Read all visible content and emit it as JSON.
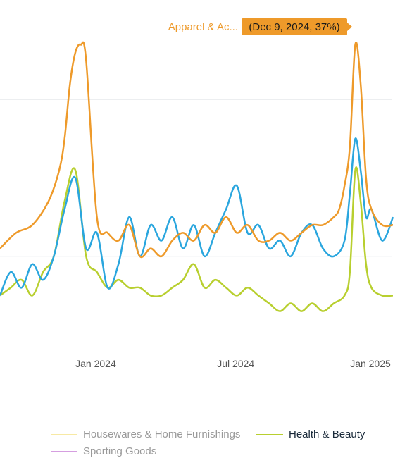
{
  "colors": {
    "apparel": "#ee9a2a",
    "electronics": "#2aa6de",
    "health": "#b8cf2f",
    "housewares": "#f7e9a4",
    "sporting": "#d59ee0",
    "gridline": "#e6e8ec",
    "tooltip_bg": "#ee9a2a",
    "tooltip_text": "#1a1a1a"
  },
  "tooltip": {
    "series_label": "Apparel & Ac...",
    "value_text": "(Dec 9, 2024, 37%)"
  },
  "legend": [
    {
      "label": "Housewares & Home Furnishings",
      "color": "#f7e9a4",
      "state": "dim"
    },
    {
      "label": "Health & Beauty",
      "color": "#b8cf2f",
      "state": "active"
    },
    {
      "label": "Sporting Goods",
      "color": "#d59ee0",
      "state": "dim"
    }
  ],
  "chart_data": {
    "type": "line",
    "x_ticks": [
      "Jan 2024",
      "Jul 2024",
      "Jan 2025"
    ],
    "x_range": [
      "2023-09-04",
      "2025-01-27"
    ],
    "ylim": [
      0,
      40
    ],
    "grid": true,
    "series": [
      {
        "color": "#ee9a2a",
        "x": [
          "2023-09-04",
          "2023-09-25",
          "2023-10-16",
          "2023-11-06",
          "2023-11-20",
          "2023-11-27",
          "2023-12-04",
          "2023-12-11",
          "2023-12-18",
          "2023-12-25",
          "2024-01-08",
          "2024-01-22",
          "2024-02-05",
          "2024-02-19",
          "2024-03-04",
          "2024-03-18",
          "2024-04-01",
          "2024-04-15",
          "2024-04-29",
          "2024-05-13",
          "2024-05-27",
          "2024-06-10",
          "2024-06-24",
          "2024-07-08",
          "2024-07-22",
          "2024-08-05",
          "2024-08-19",
          "2024-09-02",
          "2024-09-16",
          "2024-09-30",
          "2024-10-14",
          "2024-10-28",
          "2024-11-11",
          "2024-11-18",
          "2024-11-25",
          "2024-12-02",
          "2024-12-09",
          "2024-12-16",
          "2024-12-23",
          "2024-12-30",
          "2025-01-13",
          "2025-01-27"
        ],
        "values": [
          11,
          13,
          14,
          17,
          21,
          25,
          32,
          36,
          37,
          35,
          15,
          13,
          12,
          14,
          10,
          11,
          10,
          12,
          13,
          12,
          14,
          13,
          15,
          13,
          14,
          12,
          12,
          13,
          12,
          13,
          14,
          14,
          15,
          16,
          19,
          24,
          37,
          32,
          20,
          16,
          14,
          14
        ]
      },
      {
        "color": "#2aa6de",
        "x": [
          "2023-09-04",
          "2023-09-18",
          "2023-10-02",
          "2023-10-16",
          "2023-10-30",
          "2023-11-13",
          "2023-11-27",
          "2023-12-11",
          "2023-12-25",
          "2024-01-08",
          "2024-01-22",
          "2024-02-05",
          "2024-02-19",
          "2024-03-04",
          "2024-03-18",
          "2024-04-01",
          "2024-04-15",
          "2024-04-29",
          "2024-05-13",
          "2024-05-27",
          "2024-06-10",
          "2024-06-24",
          "2024-07-08",
          "2024-07-22",
          "2024-08-05",
          "2024-08-19",
          "2024-09-02",
          "2024-09-16",
          "2024-09-30",
          "2024-10-14",
          "2024-10-28",
          "2024-11-11",
          "2024-11-25",
          "2024-12-02",
          "2024-12-09",
          "2024-12-16",
          "2024-12-23",
          "2024-12-30",
          "2025-01-13",
          "2025-01-27"
        ],
        "values": [
          5,
          8,
          6,
          9,
          7,
          10,
          16,
          20,
          11,
          13,
          6,
          9,
          15,
          10,
          14,
          12,
          15,
          11,
          14,
          10,
          13,
          16,
          19,
          13,
          14,
          11,
          12,
          10,
          13,
          14,
          11,
          10,
          12,
          18,
          25,
          21,
          15,
          16,
          12,
          15
        ]
      },
      {
        "color": "#b8cf2f",
        "x": [
          "2023-09-04",
          "2023-09-18",
          "2023-10-02",
          "2023-10-16",
          "2023-10-30",
          "2023-11-13",
          "2023-11-27",
          "2023-12-11",
          "2023-12-25",
          "2024-01-08",
          "2024-01-22",
          "2024-02-05",
          "2024-02-19",
          "2024-03-04",
          "2024-03-18",
          "2024-04-01",
          "2024-04-15",
          "2024-04-29",
          "2024-05-13",
          "2024-05-27",
          "2024-06-10",
          "2024-06-24",
          "2024-07-08",
          "2024-07-22",
          "2024-08-05",
          "2024-08-19",
          "2024-09-02",
          "2024-09-16",
          "2024-09-30",
          "2024-10-14",
          "2024-10-28",
          "2024-11-11",
          "2024-11-25",
          "2024-12-02",
          "2024-12-09",
          "2024-12-16",
          "2024-12-23",
          "2024-12-30",
          "2025-01-13",
          "2025-01-27"
        ],
        "values": [
          5,
          6,
          7,
          5,
          8,
          10,
          17,
          21,
          10,
          8,
          6,
          7,
          6,
          6,
          5,
          5,
          6,
          7,
          9,
          6,
          7,
          6,
          5,
          6,
          5,
          4,
          3,
          4,
          3,
          4,
          3,
          4,
          5,
          8,
          21,
          17,
          9,
          6,
          5,
          5
        ]
      }
    ]
  }
}
